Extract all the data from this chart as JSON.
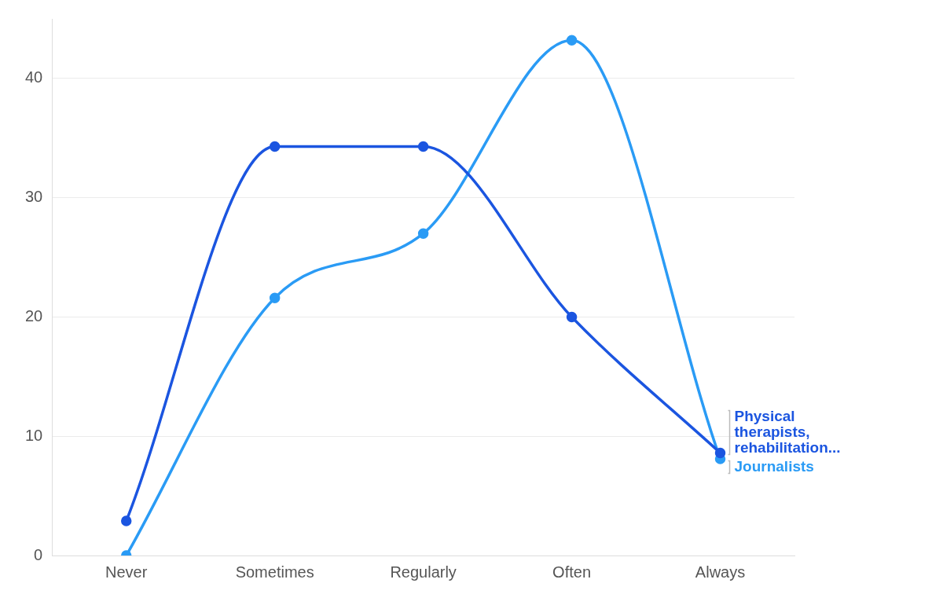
{
  "chart_data": {
    "type": "line",
    "categories": [
      "Never",
      "Sometimes",
      "Regularly",
      "Often",
      "Always"
    ],
    "series": [
      {
        "name": "Physical therapists, rehabilitation...",
        "color": "#1b55e0",
        "values": [
          2.9,
          34.3,
          34.3,
          20,
          8.6
        ]
      },
      {
        "name": "Journalists",
        "color": "#2a9bf5",
        "values": [
          0,
          21.6,
          27.0,
          43.2,
          8.1
        ]
      }
    ],
    "ylim": [
      0,
      45
    ],
    "yticks": [
      0,
      10,
      20,
      30,
      40
    ],
    "grid": "y",
    "legend": false,
    "marker": "circle",
    "line_style": "solid"
  }
}
